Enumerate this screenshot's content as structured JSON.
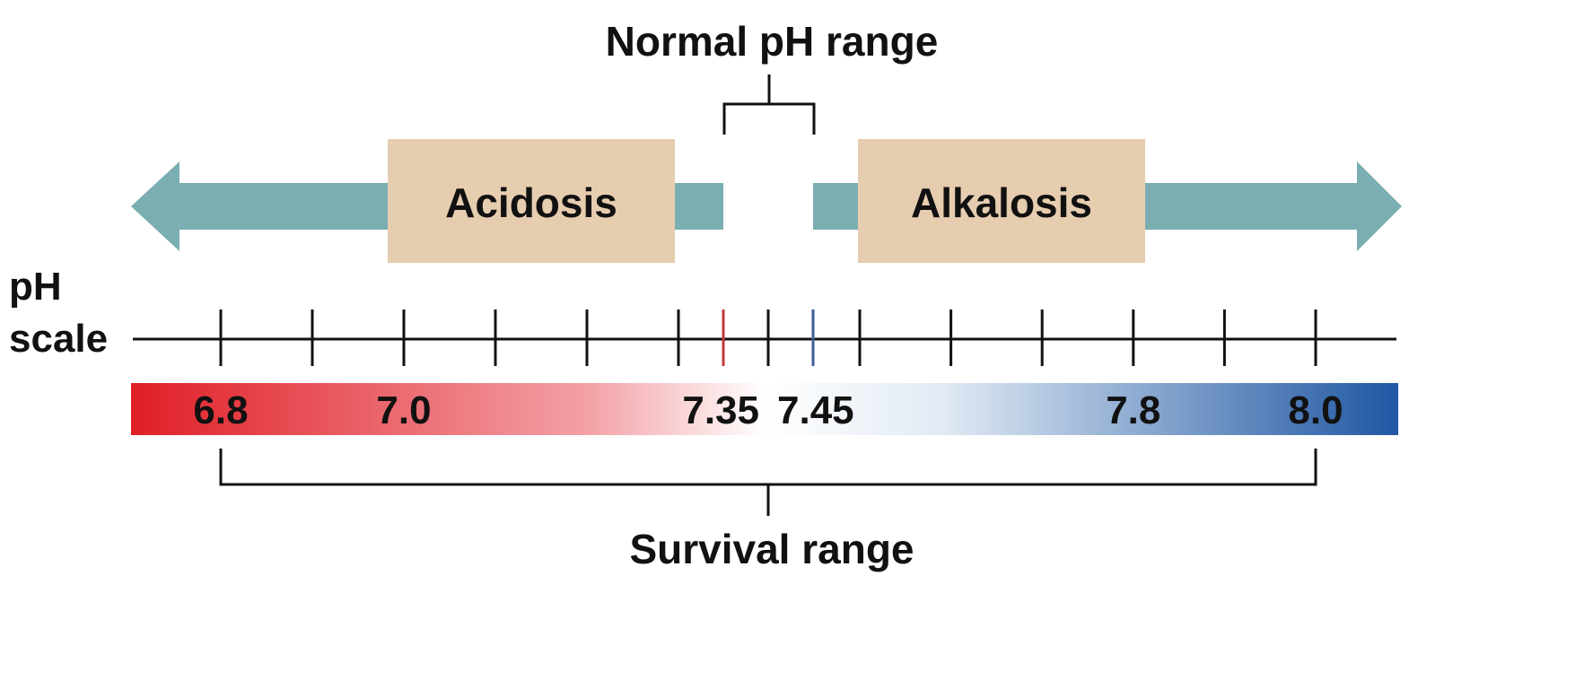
{
  "labels": {
    "normal_range": "Normal pH range",
    "survival_range": "Survival range",
    "acidosis": "Acidosis",
    "alkalosis": "Alkalosis",
    "ph_line1": "pH",
    "ph_line2": "scale"
  },
  "scale": {
    "labeled_values": [
      {
        "text": "6.8",
        "value": 6.8
      },
      {
        "text": "7.0",
        "value": 7.0
      },
      {
        "text": "7.35",
        "value": 7.35
      },
      {
        "text": "7.45",
        "value": 7.45
      },
      {
        "text": "7.8",
        "value": 7.8
      },
      {
        "text": "8.0",
        "value": 8.0
      }
    ],
    "normal_range": [
      7.35,
      7.45
    ],
    "survival_range": [
      6.8,
      8.0
    ]
  },
  "colors": {
    "arrow": "#7aaeb1",
    "box": "#e6cdaf",
    "acid_red": "#e01e26",
    "base_blue": "#1f57a3",
    "mid_light": "#fbe6e8",
    "bracket": "#111111",
    "normal_low_tick": "#c0393b",
    "normal_high_tick": "#3d5d95"
  }
}
